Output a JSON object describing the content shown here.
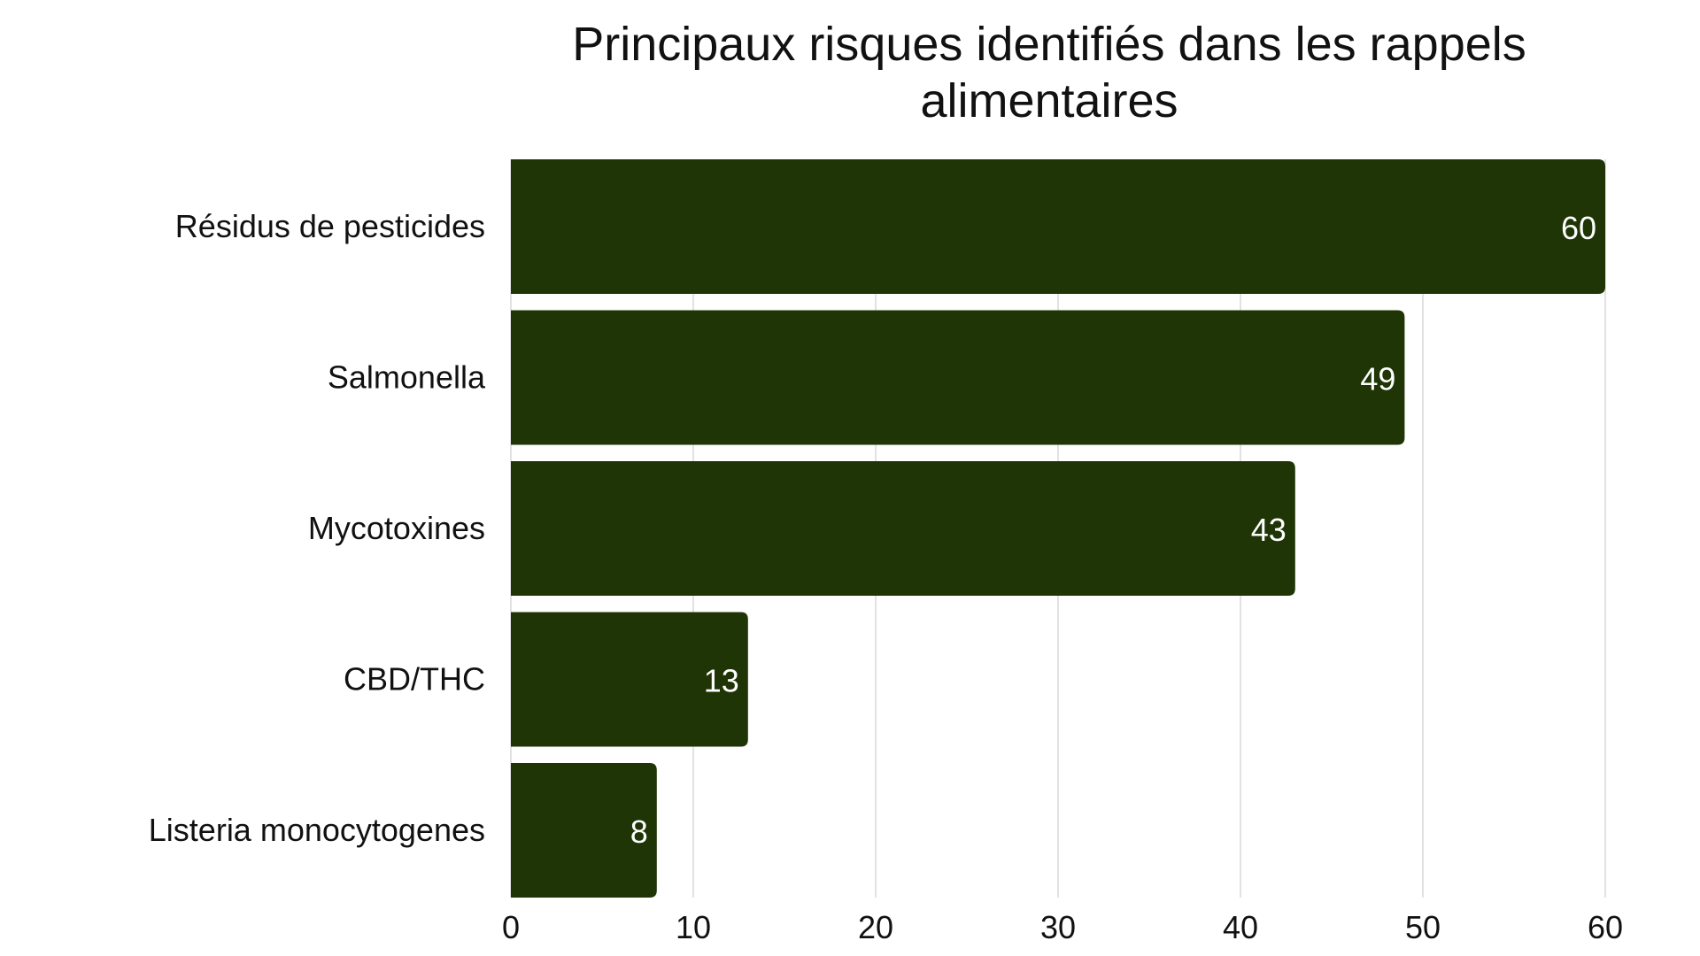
{
  "chart_data": {
    "type": "bar",
    "orientation": "horizontal",
    "title": "Principaux risques identifiés dans les rappels alimentaires",
    "categories": [
      "Résidus de pesticides",
      "Salmonella",
      "Mycotoxines",
      "CBD/THC",
      "Listeria monocytogenes"
    ],
    "values": [
      60,
      49,
      43,
      13,
      8
    ],
    "xlim": [
      0,
      60
    ],
    "xticks": [
      0,
      10,
      20,
      30,
      40,
      50,
      60
    ],
    "grid": true,
    "data_labels": true,
    "bar_color": "#1f3505",
    "grid_color": "#d9d9d9"
  }
}
